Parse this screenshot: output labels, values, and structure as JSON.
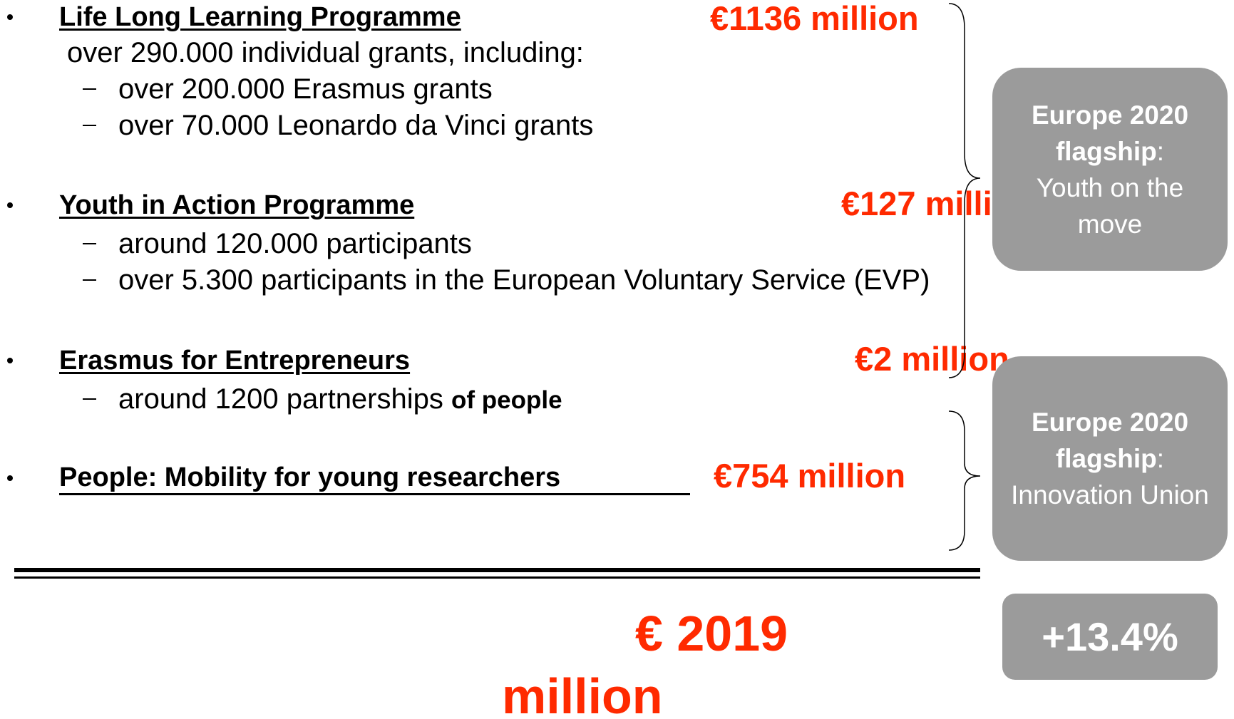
{
  "items": [
    {
      "title": "Life Long Learning Programme",
      "amount": "€1136 million",
      "intro": "over 290.000 individual grants, including:",
      "subitems": [
        "over 200.000 Erasmus grants",
        "over 70.000 Leonardo da Vinci grants"
      ]
    },
    {
      "title": "Youth in Action Programme",
      "amount": "€127 million",
      "subitems": [
        "around 120.000 participants",
        "over 5.300 participants in the European Voluntary Service (EVP)"
      ]
    },
    {
      "title": "Erasmus for Entrepreneurs",
      "amount": "€2 million",
      "subitems": [
        {
          "text": "around 1200 partnerships ",
          "bold": "of people"
        }
      ]
    },
    {
      "title": "People: Mobility for young researchers",
      "amount": "€754 million"
    }
  ],
  "flagships": [
    {
      "heading": "Europe 2020",
      "label": "flagship",
      "separator": ":",
      "name": "Youth on the move"
    },
    {
      "heading": "Europe 2020",
      "label": "flagship",
      "separator": ":",
      "name": "Innovation Union"
    }
  ],
  "total": "€ 2019 million",
  "growth": "+13.4%"
}
